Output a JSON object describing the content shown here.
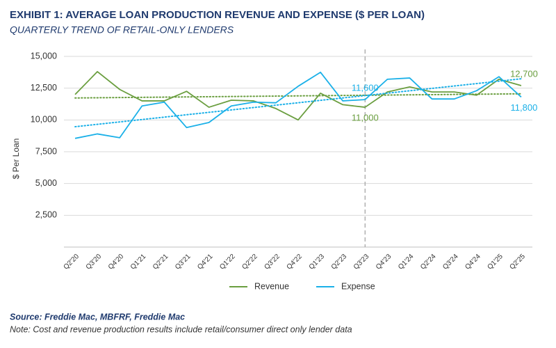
{
  "chart_data": {
    "type": "line",
    "title": "EXHIBIT 1: AVERAGE LOAN PRODUCTION REVENUE AND EXPENSE ($ PER LOAN)",
    "subtitle": "QUARTERLY TREND OF RETAIL-ONLY LENDERS",
    "y_label": "$ Per Loan",
    "source": "Source: Freddie Mac, MBFRF, Freddie Mac",
    "note": "Note: Cost and revenue production results include retail/consumer direct only lender data",
    "categories": [
      "Q2'20",
      "Q3'20",
      "Q4'20",
      "Q1'21",
      "Q2'21",
      "Q3'21",
      "Q4'21",
      "Q1'22",
      "Q2'22",
      "Q3'22",
      "Q4'22",
      "Q1'23",
      "Q2'23",
      "Q3'23",
      "Q4'23",
      "Q1'24",
      "Q2'24",
      "Q3'24",
      "Q4'24",
      "Q1'25",
      "Q2'25"
    ],
    "series": [
      {
        "name": "Revenue",
        "color": "#6a9e3f",
        "values": [
          12000,
          13800,
          12400,
          11500,
          11500,
          12250,
          11000,
          11550,
          11500,
          10900,
          10000,
          12100,
          11200,
          11000,
          12200,
          12600,
          12200,
          12200,
          11950,
          13200,
          12700
        ],
        "value_labels": [
          null,
          null,
          null,
          null,
          null,
          null,
          null,
          null,
          null,
          null,
          null,
          null,
          null,
          "11,000",
          null,
          null,
          null,
          null,
          null,
          null,
          "12,700"
        ]
      },
      {
        "name": "Expense",
        "color": "#1ab0e8",
        "values": [
          8550,
          8900,
          8600,
          11100,
          11400,
          9400,
          9800,
          11100,
          11400,
          11350,
          12650,
          13750,
          11500,
          11600,
          13200,
          13300,
          11650,
          11650,
          12300,
          13400,
          11800
        ],
        "value_labels": [
          null,
          null,
          null,
          null,
          null,
          null,
          null,
          null,
          null,
          null,
          null,
          null,
          null,
          "11,600",
          null,
          null,
          null,
          null,
          null,
          null,
          "11,800"
        ]
      }
    ],
    "ylim": [
      0,
      15000
    ],
    "yticks": [
      {
        "value": 2500,
        "label": "2,500"
      },
      {
        "value": 5000,
        "label": "5,000"
      },
      {
        "value": 7500,
        "label": "7,500"
      },
      {
        "value": 10000,
        "label": "10,000"
      },
      {
        "value": 12500,
        "label": "12,500"
      },
      {
        "value": 15000,
        "label": "15,000"
      }
    ],
    "grid": true,
    "trendline": true,
    "reference_line": "Q3'23",
    "legend": "bottom"
  }
}
